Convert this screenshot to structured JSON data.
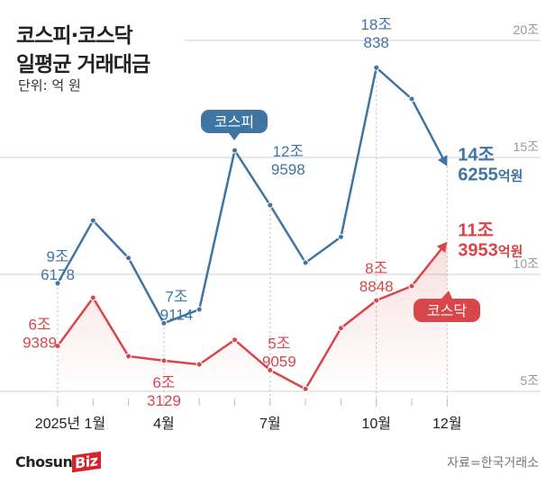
{
  "header": {
    "title_line1": "코스피·코스닥",
    "title_line2": "일평균 거래대금",
    "unit": "단위: 억 원"
  },
  "footer": {
    "logo_text": "Chosun",
    "logo_badge": "Biz",
    "source": "자료=한국거래소"
  },
  "colors": {
    "kospi": "#3f74a3",
    "kosdaq": "#d9464a",
    "grid": "#d0d0d0",
    "axis_text": "#999999"
  },
  "chart_data": {
    "type": "line",
    "title": "코스피·코스닥 일평균 거래대금",
    "ylabel": "조 원",
    "ylim": [
      5,
      20
    ],
    "yticks": [
      {
        "v": 20,
        "label": "20조"
      },
      {
        "v": 15,
        "label": "15조"
      },
      {
        "v": 10,
        "label": "10조"
      },
      {
        "v": 5,
        "label": "5조"
      }
    ],
    "x": [
      1,
      2,
      3,
      4,
      5,
      6,
      7,
      8,
      9,
      10,
      11,
      12
    ],
    "xtick_labels": [
      {
        "m": 1,
        "label": "2025년 1월"
      },
      {
        "m": 4,
        "label": "4월"
      },
      {
        "m": 7,
        "label": "7월"
      },
      {
        "m": 10,
        "label": "10월"
      },
      {
        "m": 12,
        "label": "12월"
      }
    ],
    "grid": true,
    "series": [
      {
        "name": "코스피",
        "values": [
          9.6178,
          12.3,
          10.7,
          7.9114,
          8.5,
          15.3,
          12.9598,
          10.5,
          11.6,
          18.838,
          17.5,
          14.6255
        ],
        "annotations": [
          {
            "m": 1,
            "l1": "9조",
            "l2": "6178"
          },
          {
            "m": 4,
            "l1": "7조",
            "l2": "9114"
          },
          {
            "m": 7,
            "l1": "12조",
            "l2": "9598"
          },
          {
            "m": 10,
            "l1": "18조",
            "l2": "838"
          },
          {
            "m": 12,
            "l1": "14조",
            "l2": "6255",
            "suffix": "억원"
          }
        ]
      },
      {
        "name": "코스닥",
        "values": [
          6.9389,
          9.0,
          6.5,
          6.3129,
          6.15,
          7.2,
          5.9059,
          5.1,
          7.7,
          8.8848,
          9.5,
          11.3953
        ],
        "annotations": [
          {
            "m": 1,
            "l1": "6조",
            "l2": "9389"
          },
          {
            "m": 4,
            "l1": "6조",
            "l2": "3129"
          },
          {
            "m": 7,
            "l1": "5조",
            "l2": "9059"
          },
          {
            "m": 10,
            "l1": "8조",
            "l2": "8848"
          },
          {
            "m": 12,
            "l1": "11조",
            "l2": "3953",
            "suffix": "억원"
          }
        ]
      }
    ]
  }
}
